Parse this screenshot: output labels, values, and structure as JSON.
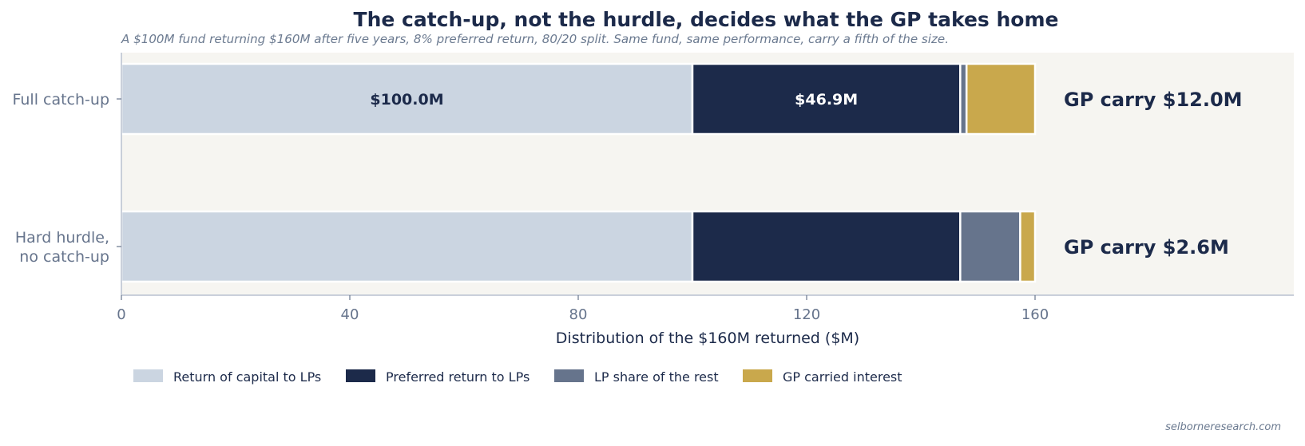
{
  "chart_data": {
    "type": "bar",
    "orientation": "horizontal",
    "stacked": true,
    "title": "The catch-up, not the hurdle, decides what the GP takes home",
    "subtitle": "A $100M fund returning $160M after five years, 8% preferred return, 80/20 split. Same fund, same performance, carry a fifth of the size.",
    "xlabel": "Distribution of the $160M returned ($M)",
    "ylabel": "",
    "xlim": [
      0,
      205
    ],
    "xticks": [
      0,
      40,
      80,
      120,
      160
    ],
    "categories": [
      "Full catch-up",
      "Hard hurdle,\nno catch-up"
    ],
    "category_lines": [
      [
        "Full catch-up"
      ],
      [
        "Hard hurdle,",
        "no catch-up"
      ]
    ],
    "series": [
      {
        "name": "Return of capital to LPs",
        "color": "#cbd5e1",
        "values": [
          100.0,
          100.0
        ]
      },
      {
        "name": "Preferred return to LPs",
        "color": "#1c2a4a",
        "values": [
          46.9,
          46.9
        ]
      },
      {
        "name": "LP share of the rest",
        "color": "#66748c",
        "values": [
          1.1,
          10.5
        ]
      },
      {
        "name": "GP carried interest",
        "color": "#c9a84c",
        "values": [
          12.0,
          2.6
        ]
      }
    ],
    "data_labels": [
      {
        "category_index": 0,
        "series_index": 0,
        "text": "$100.0M",
        "color": "#1c2a4a"
      },
      {
        "category_index": 0,
        "series_index": 1,
        "text": "$46.9M",
        "color": "#ffffff"
      }
    ],
    "annotations": [
      "GP carry $12.0M",
      "GP carry $2.6M"
    ],
    "legend_position": "bottom-left",
    "grid": false,
    "plot_background": "#f6f5f1"
  },
  "source": "selborneresearch.com"
}
